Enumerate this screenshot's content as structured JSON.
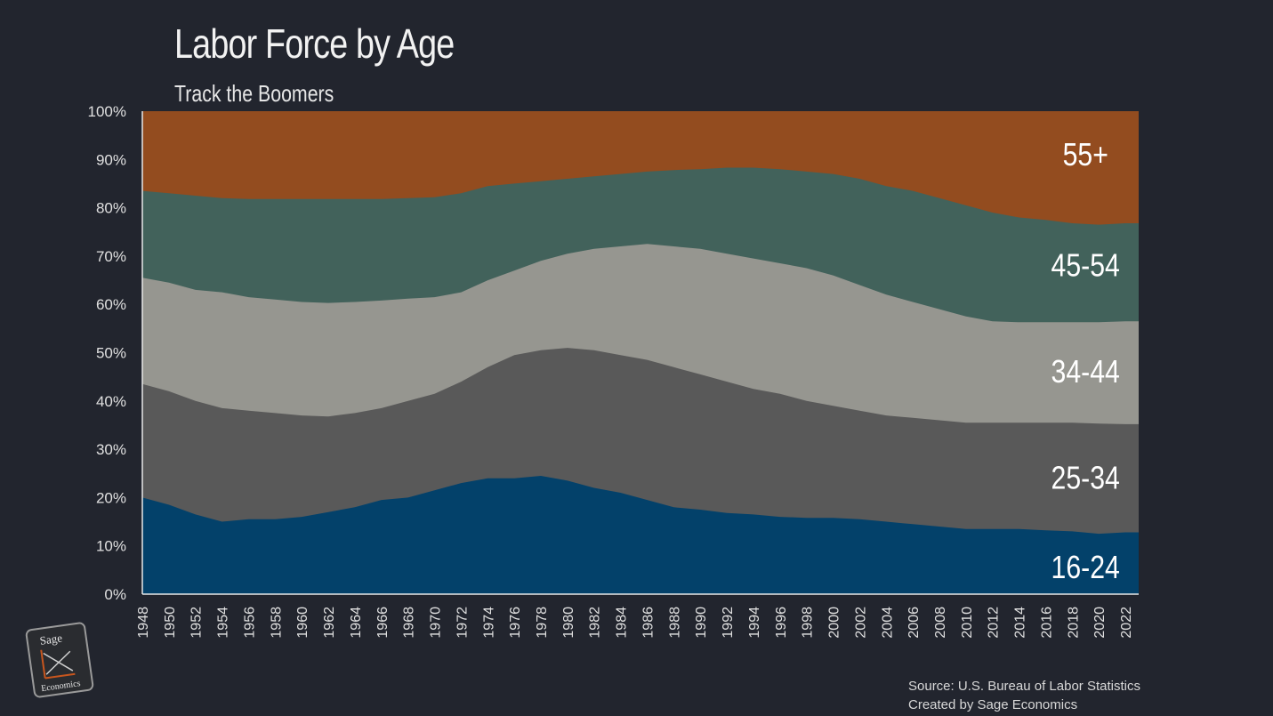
{
  "title": "Labor Force by Age",
  "subtitle": "Track the Boomers",
  "source_line1": "Source: U.S. Bureau of Labor Statistics",
  "source_line2": "Created by Sage Economics",
  "logo": {
    "text_top": "Sage",
    "text_bottom": "Economics",
    "accent_color": "#c8561e"
  },
  "chart_data": {
    "type": "area",
    "stacked": true,
    "x": [
      1948,
      1950,
      1952,
      1954,
      1956,
      1958,
      1960,
      1962,
      1964,
      1966,
      1968,
      1970,
      1972,
      1974,
      1976,
      1978,
      1980,
      1982,
      1984,
      1986,
      1988,
      1990,
      1992,
      1994,
      1996,
      1998,
      2000,
      2002,
      2004,
      2006,
      2008,
      2010,
      2012,
      2014,
      2016,
      2018,
      2020,
      2022,
      2023
    ],
    "xticks": [
      "1948",
      "1950",
      "1952",
      "1954",
      "1956",
      "1958",
      "1960",
      "1962",
      "1964",
      "1966",
      "1968",
      "1970",
      "1972",
      "1974",
      "1976",
      "1978",
      "1980",
      "1982",
      "1984",
      "1986",
      "1988",
      "1990",
      "1992",
      "1994",
      "1996",
      "1998",
      "2000",
      "2002",
      "2004",
      "2006",
      "2008",
      "2010",
      "2012",
      "2014",
      "2016",
      "2018",
      "2020",
      "2022"
    ],
    "yticks": [
      "0%",
      "10%",
      "20%",
      "30%",
      "40%",
      "50%",
      "60%",
      "70%",
      "80%",
      "90%",
      "100%"
    ],
    "ylim": [
      0,
      100
    ],
    "series": [
      {
        "name": "16-24",
        "color": "#03416a",
        "cumulative": [
          20,
          18.5,
          16.5,
          15,
          15.5,
          15.5,
          16,
          17,
          18,
          19.5,
          20,
          21.5,
          23,
          24,
          24,
          24.5,
          23.5,
          22,
          21,
          19.5,
          18,
          17.5,
          16.8,
          16.5,
          16,
          15.8,
          15.8,
          15.5,
          15,
          14.5,
          14,
          13.5,
          13.5,
          13.5,
          13.2,
          13,
          12.5,
          12.8,
          12.8
        ]
      },
      {
        "name": "25-34",
        "color": "#595959",
        "cumulative": [
          43.5,
          42,
          40,
          38.5,
          38,
          37.5,
          37,
          36.8,
          37.5,
          38.5,
          40,
          41.5,
          44,
          47,
          49.5,
          50.5,
          51,
          50.5,
          49.5,
          48.5,
          47,
          45.5,
          44,
          42.5,
          41.5,
          40,
          39,
          38,
          37,
          36.5,
          36,
          35.5,
          35.5,
          35.5,
          35.5,
          35.5,
          35.3,
          35.2,
          35.2
        ]
      },
      {
        "name": "34-44",
        "color": "#969690",
        "cumulative": [
          65.5,
          64.5,
          63,
          62.5,
          61.5,
          61,
          60.5,
          60.3,
          60.5,
          60.8,
          61.2,
          61.5,
          62.5,
          65,
          67,
          69,
          70.5,
          71.5,
          72,
          72.5,
          72,
          71.5,
          70.5,
          69.5,
          68.5,
          67.5,
          66,
          64,
          62,
          60.5,
          59,
          57.5,
          56.5,
          56.3,
          56.3,
          56.3,
          56.3,
          56.5,
          56.5
        ]
      },
      {
        "name": "45-54",
        "color": "#42625b",
        "cumulative": [
          83.5,
          83,
          82.5,
          82,
          81.8,
          81.8,
          81.8,
          81.8,
          81.8,
          81.8,
          82,
          82.2,
          83,
          84.5,
          85,
          85.5,
          86,
          86.5,
          87,
          87.5,
          87.8,
          88,
          88.3,
          88.3,
          88,
          87.5,
          87,
          86,
          84.5,
          83.5,
          82,
          80.5,
          79,
          78,
          77.5,
          76.8,
          76.5,
          76.8,
          76.8
        ]
      },
      {
        "name": "55+",
        "color": "#934c1f",
        "cumulative": [
          100,
          100,
          100,
          100,
          100,
          100,
          100,
          100,
          100,
          100,
          100,
          100,
          100,
          100,
          100,
          100,
          100,
          100,
          100,
          100,
          100,
          100,
          100,
          100,
          100,
          100,
          100,
          100,
          100,
          100,
          100,
          100,
          100,
          100,
          100,
          100,
          100,
          100,
          100
        ]
      }
    ],
    "band_labels": [
      {
        "text": "55+",
        "series": "55+",
        "y": 91
      },
      {
        "text": "45-54",
        "series": "45-54",
        "y": 68
      },
      {
        "text": "34-44",
        "series": "34-44",
        "y": 46
      },
      {
        "text": "25-34",
        "series": "25-34",
        "y": 24
      },
      {
        "text": "16-24",
        "series": "16-24",
        "y": 5.5
      }
    ],
    "band_label_x": 2019
  }
}
